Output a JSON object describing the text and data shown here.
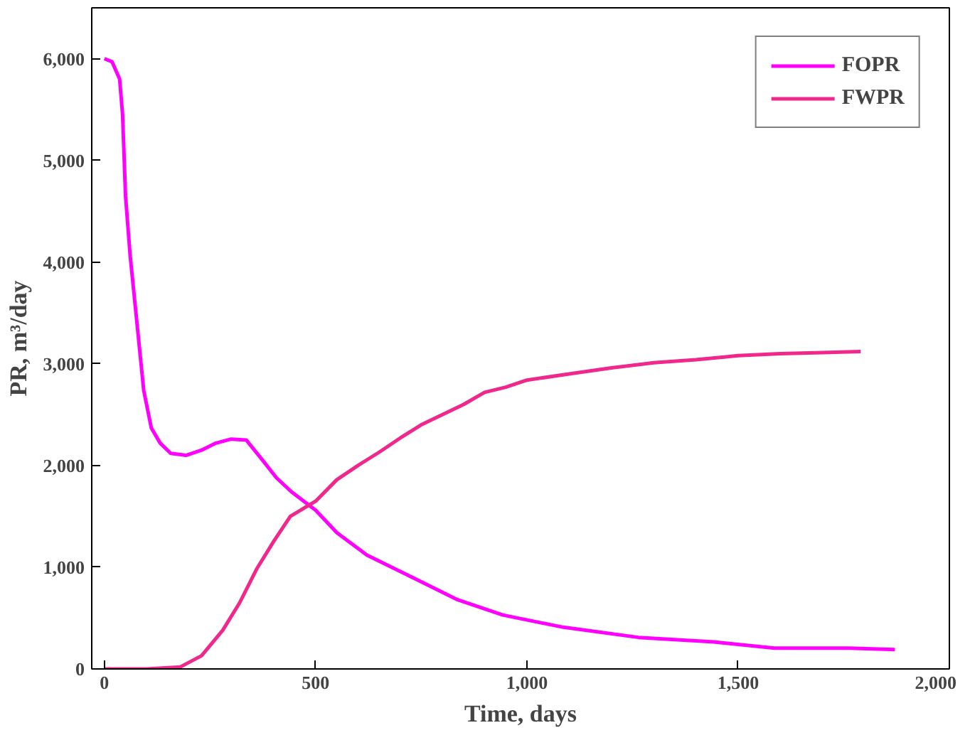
{
  "chart_data": {
    "type": "line",
    "xlabel": "Time, days",
    "ylabel": "PR, m³/day",
    "xlim": [
      -30,
      2000
    ],
    "ylim": [
      0,
      6500
    ],
    "xticks": [
      0,
      500,
      {
        "value": 1000,
        "label": "1,000"
      },
      {
        "value": 1500,
        "label": "1,500"
      },
      {
        "value": 2000,
        "label": "2,000"
      }
    ],
    "yticks": [
      0,
      {
        "value": 1000,
        "label": "1,000"
      },
      {
        "value": 2000,
        "label": "2,000"
      },
      {
        "value": 3000,
        "label": "3,000"
      },
      {
        "value": 4000,
        "label": "4,000"
      },
      {
        "value": 5000,
        "label": "5,000"
      },
      {
        "value": 6000,
        "label": "6,000"
      }
    ],
    "grid": false,
    "legend": "top right",
    "marker": "none",
    "line_style": "solid",
    "series": [
      {
        "name": "FOPR",
        "color": "#ff00ff",
        "x": [
          0,
          18,
          36,
          43,
          50,
          61,
          79,
          93,
          111,
          132,
          157,
          193,
          229,
          264,
          300,
          336,
          371,
          407,
          443,
          500,
          550,
          621,
          729,
          836,
          943,
          1086,
          1264,
          1443,
          1586,
          1764,
          1871
        ],
        "values": [
          6000,
          5970,
          5800,
          5450,
          4650,
          4060,
          3320,
          2740,
          2370,
          2220,
          2120,
          2100,
          2150,
          2220,
          2260,
          2250,
          2070,
          1880,
          1740,
          1560,
          1340,
          1120,
          900,
          680,
          530,
          410,
          310,
          265,
          205,
          205,
          190
        ]
      },
      {
        "name": "FWPR",
        "color": "#f0288c",
        "x": [
          0,
          100,
          180,
          230,
          280,
          320,
          360,
          400,
          440,
          500,
          550,
          600,
          650,
          700,
          750,
          800,
          850,
          900,
          950,
          1000,
          1100,
          1200,
          1300,
          1400,
          1500,
          1600,
          1700,
          1790
        ],
        "values": [
          0,
          0,
          20,
          130,
          380,
          650,
          980,
          1250,
          1500,
          1650,
          1860,
          2000,
          2130,
          2270,
          2400,
          2500,
          2600,
          2720,
          2770,
          2840,
          2900,
          2960,
          3010,
          3040,
          3080,
          3100,
          3110,
          3120
        ]
      }
    ]
  }
}
